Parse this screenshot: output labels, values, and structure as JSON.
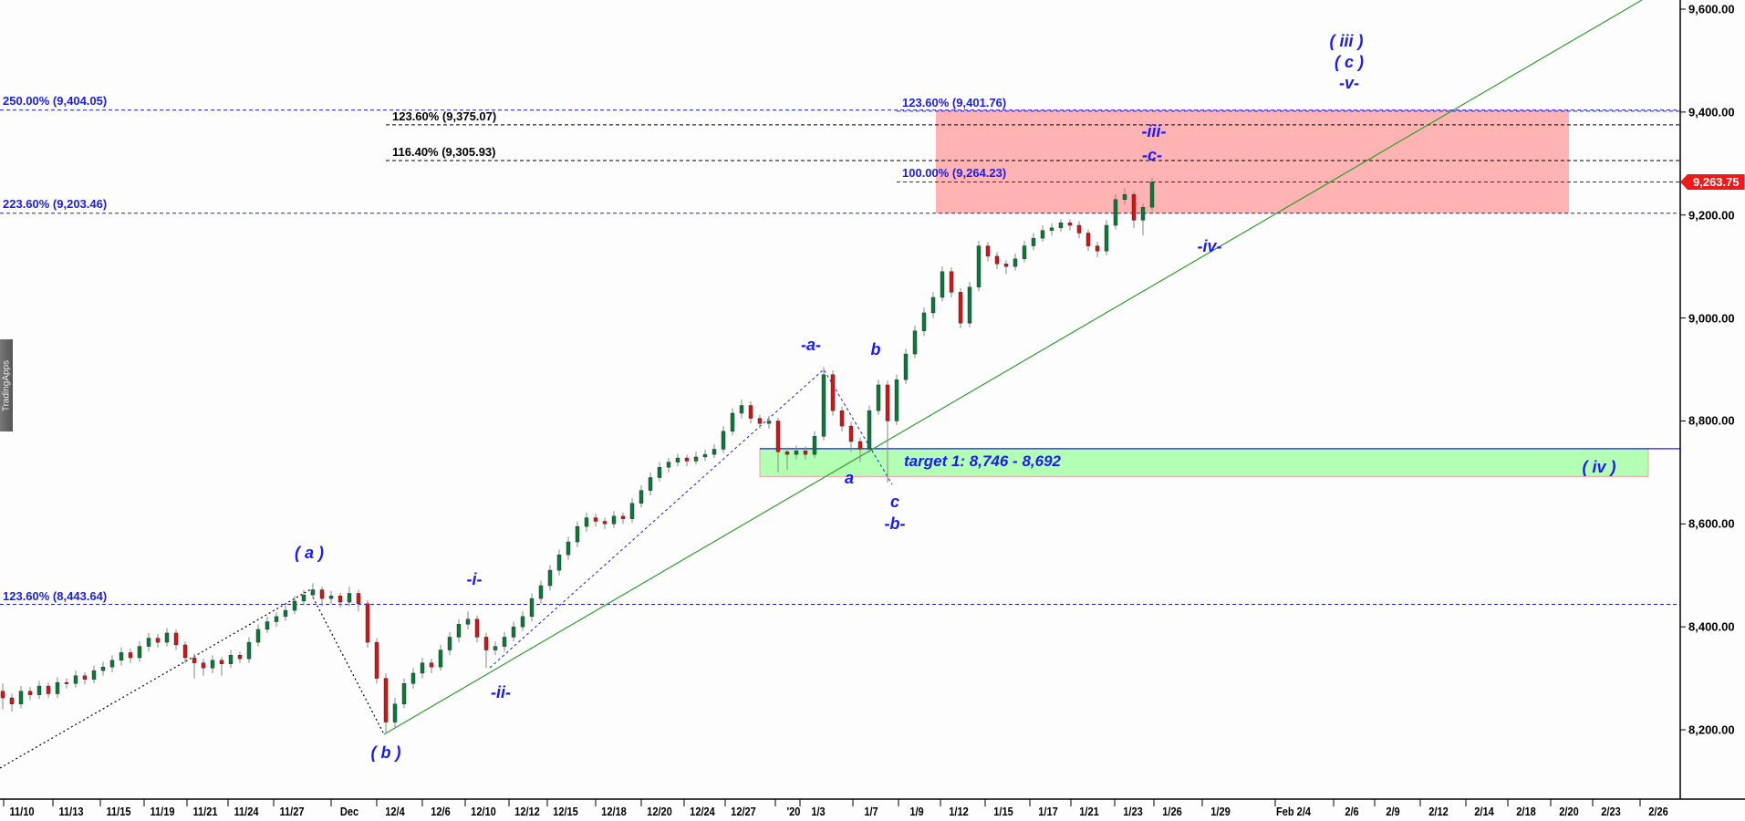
{
  "chart_data": {
    "type": "candlestick",
    "colors": {
      "up": "#0a7a3a",
      "down": "#e01010",
      "wick": "#888888",
      "fib_blue": "#1a1aff",
      "fib_black": "#000000",
      "trendline": "#2e9e2e",
      "target_zone": "#b3ffb3",
      "resistance_zone": "#ffb3b3",
      "last_price_tag": "#f01818"
    },
    "y_axis": {
      "range": [
        8120,
        9620
      ],
      "ticks": [
        "9,600.00",
        "9,400.00",
        "9,200.00",
        "9,000.00",
        "8,800.00",
        "8,600.00",
        "8,400.00",
        "8,200.00"
      ],
      "tick_values": [
        9600,
        9400,
        9200,
        9000,
        8800,
        8600,
        8400,
        8200
      ]
    },
    "x_axis": {
      "ticks": [
        "11/10",
        "11/13",
        "11/15",
        "11/19",
        "11/21",
        "11/24",
        "11/27",
        "Dec",
        "12/4",
        "12/6",
        "12/10",
        "12/12",
        "12/15",
        "12/18",
        "12/20",
        "12/24",
        "12/27",
        "'20",
        "1/3",
        "1/7",
        "1/9",
        "1/12",
        "1/15",
        "1/17",
        "1/21",
        "1/23",
        "1/26",
        "1/29",
        "Feb 2/4",
        "2/6",
        "2/9",
        "2/12",
        "2/14",
        "2/18",
        "2/20",
        "2/23",
        "2/26"
      ]
    },
    "last_price": "9,263.75",
    "candles_ohlc": [
      [
        8275,
        8290,
        8240,
        8262
      ],
      [
        8262,
        8270,
        8235,
        8250
      ],
      [
        8250,
        8285,
        8242,
        8275
      ],
      [
        8275,
        8283,
        8258,
        8268
      ],
      [
        8268,
        8295,
        8260,
        8285
      ],
      [
        8285,
        8292,
        8262,
        8270
      ],
      [
        8270,
        8302,
        8262,
        8292
      ],
      [
        8292,
        8300,
        8280,
        8290
      ],
      [
        8290,
        8315,
        8282,
        8305
      ],
      [
        8305,
        8312,
        8288,
        8298
      ],
      [
        8298,
        8325,
        8290,
        8315
      ],
      [
        8315,
        8332,
        8305,
        8322
      ],
      [
        8322,
        8345,
        8312,
        8335
      ],
      [
        8335,
        8360,
        8325,
        8350
      ],
      [
        8350,
        8358,
        8330,
        8340
      ],
      [
        8340,
        8372,
        8332,
        8362
      ],
      [
        8362,
        8388,
        8352,
        8378
      ],
      [
        8378,
        8386,
        8360,
        8370
      ],
      [
        8370,
        8398,
        8362,
        8388
      ],
      [
        8388,
        8395,
        8355,
        8365
      ],
      [
        8365,
        8372,
        8330,
        8340
      ],
      [
        8340,
        8348,
        8300,
        8330
      ],
      [
        8330,
        8338,
        8305,
        8320
      ],
      [
        8320,
        8345,
        8310,
        8335
      ],
      [
        8335,
        8342,
        8305,
        8328
      ],
      [
        8328,
        8355,
        8320,
        8345
      ],
      [
        8345,
        8352,
        8330,
        8338
      ],
      [
        8338,
        8380,
        8330,
        8370
      ],
      [
        8370,
        8405,
        8362,
        8395
      ],
      [
        8395,
        8420,
        8388,
        8410
      ],
      [
        8410,
        8428,
        8400,
        8420
      ],
      [
        8420,
        8442,
        8412,
        8432
      ],
      [
        8432,
        8460,
        8425,
        8450
      ],
      [
        8450,
        8472,
        8442,
        8462
      ],
      [
        8462,
        8485,
        8455,
        8472
      ],
      [
        8472,
        8478,
        8440,
        8455
      ],
      [
        8455,
        8470,
        8445,
        8460
      ],
      [
        8460,
        8466,
        8438,
        8448
      ],
      [
        8448,
        8478,
        8440,
        8465
      ],
      [
        8465,
        8472,
        8430,
        8445
      ],
      [
        8445,
        8452,
        8360,
        8370
      ],
      [
        8370,
        8378,
        8290,
        8300
      ],
      [
        8300,
        8310,
        8195,
        8215
      ],
      [
        8215,
        8262,
        8205,
        8250
      ],
      [
        8250,
        8300,
        8242,
        8290
      ],
      [
        8290,
        8320,
        8280,
        8310
      ],
      [
        8310,
        8340,
        8300,
        8330
      ],
      [
        8330,
        8338,
        8310,
        8322
      ],
      [
        8322,
        8365,
        8315,
        8355
      ],
      [
        8355,
        8390,
        8345,
        8380
      ],
      [
        8380,
        8415,
        8370,
        8405
      ],
      [
        8405,
        8430,
        8395,
        8415
      ],
      [
        8415,
        8422,
        8370,
        8380
      ],
      [
        8380,
        8388,
        8320,
        8355
      ],
      [
        8355,
        8372,
        8345,
        8362
      ],
      [
        8362,
        8390,
        8352,
        8380
      ],
      [
        8380,
        8410,
        8372,
        8400
      ],
      [
        8400,
        8430,
        8392,
        8420
      ],
      [
        8420,
        8465,
        8410,
        8455
      ],
      [
        8455,
        8490,
        8445,
        8480
      ],
      [
        8480,
        8520,
        8470,
        8510
      ],
      [
        8510,
        8550,
        8500,
        8540
      ],
      [
        8540,
        8575,
        8530,
        8565
      ],
      [
        8565,
        8605,
        8555,
        8595
      ],
      [
        8595,
        8622,
        8585,
        8612
      ],
      [
        8612,
        8620,
        8595,
        8605
      ],
      [
        8605,
        8612,
        8590,
        8600
      ],
      [
        8600,
        8625,
        8592,
        8615
      ],
      [
        8615,
        8622,
        8600,
        8610
      ],
      [
        8610,
        8650,
        8602,
        8640
      ],
      [
        8640,
        8675,
        8632,
        8665
      ],
      [
        8665,
        8700,
        8655,
        8690
      ],
      [
        8690,
        8720,
        8682,
        8710
      ],
      [
        8710,
        8728,
        8700,
        8720
      ],
      [
        8720,
        8736,
        8712,
        8728
      ],
      [
        8728,
        8734,
        8712,
        8722
      ],
      [
        8722,
        8740,
        8715,
        8730
      ],
      [
        8730,
        8744,
        8722,
        8735
      ],
      [
        8735,
        8755,
        8728,
        8745
      ],
      [
        8745,
        8790,
        8738,
        8780
      ],
      [
        8780,
        8825,
        8772,
        8815
      ],
      [
        8815,
        8842,
        8805,
        8830
      ],
      [
        8830,
        8838,
        8795,
        8805
      ],
      [
        8805,
        8812,
        8785,
        8795
      ],
      [
        8795,
        8810,
        8785,
        8800
      ],
      [
        8800,
        8806,
        8700,
        8740
      ],
      [
        8740,
        8748,
        8705,
        8735
      ],
      [
        8735,
        8752,
        8725,
        8742
      ],
      [
        8742,
        8750,
        8725,
        8735
      ],
      [
        8735,
        8780,
        8728,
        8770
      ],
      [
        8770,
        8905,
        8762,
        8890
      ],
      [
        8890,
        8898,
        8810,
        8820
      ],
      [
        8820,
        8828,
        8780,
        8790
      ],
      [
        8790,
        8798,
        8740,
        8760
      ],
      [
        8760,
        8768,
        8720,
        8745
      ],
      [
        8745,
        8830,
        8738,
        8820
      ],
      [
        8820,
        8880,
        8812,
        8870
      ],
      [
        8870,
        8878,
        8680,
        8800
      ],
      [
        8800,
        8890,
        8792,
        8880
      ],
      [
        8880,
        8940,
        8872,
        8930
      ],
      [
        8930,
        8985,
        8922,
        8975
      ],
      [
        8975,
        9020,
        8965,
        9010
      ],
      [
        9010,
        9050,
        9000,
        9040
      ],
      [
        9040,
        9100,
        9032,
        9090
      ],
      [
        9090,
        9098,
        9040,
        9050
      ],
      [
        9050,
        9058,
        8980,
        8990
      ],
      [
        8990,
        9070,
        8982,
        9060
      ],
      [
        9060,
        9150,
        9052,
        9140
      ],
      [
        9140,
        9148,
        9110,
        9120
      ],
      [
        9120,
        9128,
        9095,
        9105
      ],
      [
        9105,
        9112,
        9085,
        9100
      ],
      [
        9100,
        9125,
        9092,
        9115
      ],
      [
        9115,
        9150,
        9108,
        9140
      ],
      [
        9140,
        9165,
        9132,
        9155
      ],
      [
        9155,
        9180,
        9148,
        9170
      ],
      [
        9170,
        9184,
        9160,
        9175
      ],
      [
        9175,
        9192,
        9168,
        9185
      ],
      [
        9185,
        9192,
        9170,
        9180
      ],
      [
        9180,
        9188,
        9155,
        9165
      ],
      [
        9165,
        9172,
        9130,
        9140
      ],
      [
        9140,
        9148,
        9118,
        9130
      ],
      [
        9130,
        9190,
        9122,
        9180
      ],
      [
        9180,
        9240,
        9172,
        9230
      ],
      [
        9230,
        9252,
        9220,
        9240
      ],
      [
        9240,
        9246,
        9175,
        9190
      ],
      [
        9190,
        9222,
        9160,
        9215
      ],
      [
        9215,
        9272,
        9208,
        9264
      ]
    ],
    "fib_levels": [
      {
        "label": "250.00% (9,404.05)",
        "price": 9404.05,
        "color": "#1a1aff"
      },
      {
        "label": "223.60% (9,203.46)",
        "price": 9203.46,
        "color": "#1a1aff"
      },
      {
        "label": "123.60% (8,443.64)",
        "price": 8443.64,
        "color": "#1a1aff"
      },
      {
        "label": "123.60% (9,375.07)",
        "price": 9375.07,
        "color": "#000000"
      },
      {
        "label": "116.40% (9,305.93)",
        "price": 9305.93,
        "color": "#000000"
      },
      {
        "label": "123.60% (9,401.76)",
        "price": 9401.76,
        "color": "#1a1aff"
      },
      {
        "label": "100.00% (9,264.23)",
        "price": 9264.23,
        "color": "#1a1aff"
      }
    ],
    "zones": {
      "resistance": {
        "top": 9404.05,
        "bottom": 9203.46
      },
      "target": {
        "label": "target 1: 8,746 - 8,692",
        "top": 8746,
        "bottom": 8692
      }
    },
    "wave_labels": [
      "( a )",
      "( b )",
      "-i-",
      "-ii-",
      "-a-",
      "a",
      "b",
      "c",
      "-b-",
      "-iv-",
      "-iii-",
      "-c-",
      "( iii )",
      "( c )",
      "-v-",
      "( iv )"
    ]
  },
  "brand": "TradingApps"
}
